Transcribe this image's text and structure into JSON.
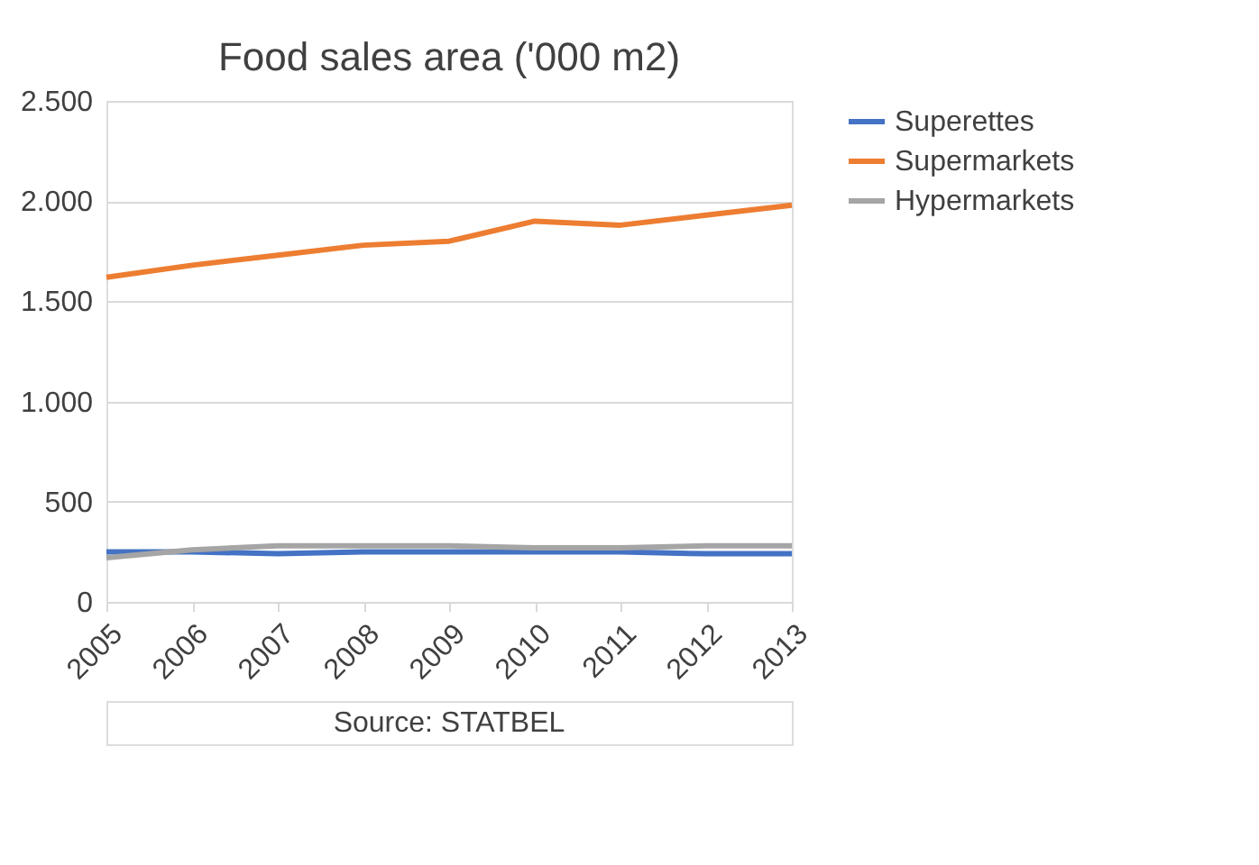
{
  "chart_data": {
    "type": "line",
    "title": "Food sales area ('000 m2)",
    "categories": [
      "2005",
      "2006",
      "2007",
      "2008",
      "2009",
      "2010",
      "2011",
      "2012",
      "2013"
    ],
    "series": [
      {
        "name": "Superettes",
        "color": "#4472c4",
        "values": [
          250,
          250,
          240,
          250,
          250,
          250,
          250,
          240,
          240
        ]
      },
      {
        "name": "Supermarkets",
        "color": "#ed7d31",
        "values": [
          1620,
          1680,
          1730,
          1780,
          1800,
          1900,
          1880,
          1930,
          1980
        ]
      },
      {
        "name": "Hypermarkets",
        "color": "#a5a5a5",
        "values": [
          220,
          260,
          280,
          280,
          280,
          270,
          270,
          280,
          280
        ]
      }
    ],
    "ylim": [
      0,
      2500
    ],
    "yticks": [
      0,
      500,
      {
        "value": 1000,
        "label": "1.000"
      },
      {
        "value": 1500,
        "label": "1.500"
      },
      {
        "value": 2000,
        "label": "2.000"
      },
      {
        "value": 2500,
        "label": "2.500"
      }
    ],
    "grid": "y",
    "legend": "right",
    "marker": "none",
    "line_style": "solid",
    "annotations": [
      "Source: STATBEL"
    ]
  }
}
